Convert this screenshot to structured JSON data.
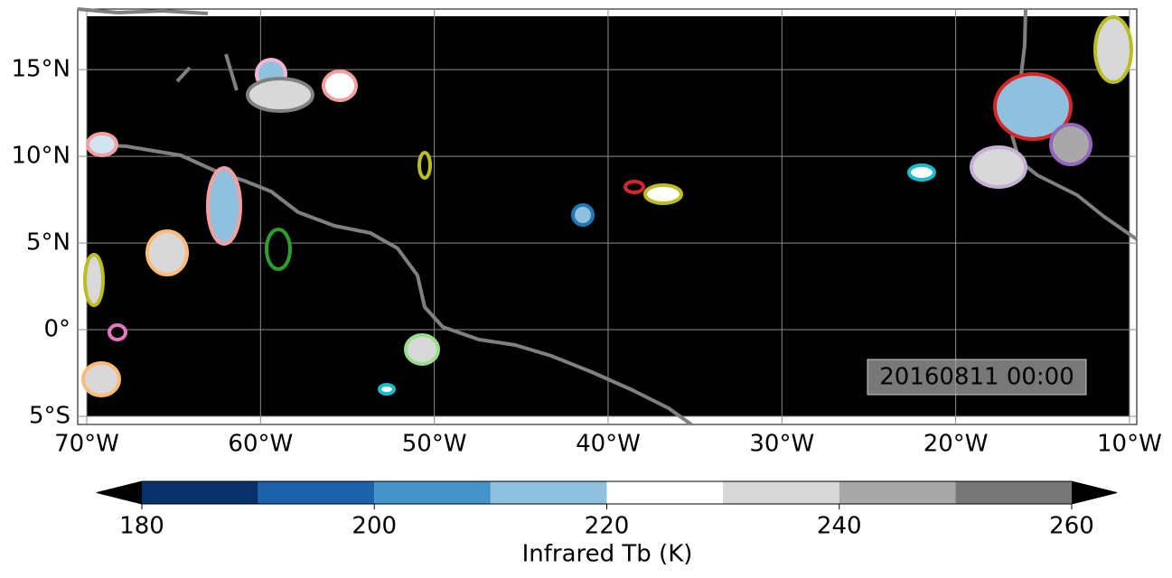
{
  "map": {
    "lonlim": [
      -70.52,
      -9.58
    ],
    "latlim": [
      -5.47,
      18.5
    ],
    "lon_ticks": [
      {
        "value": -70,
        "label": "70°W"
      },
      {
        "value": -60,
        "label": "60°W"
      },
      {
        "value": -50,
        "label": "50°W"
      },
      {
        "value": -40,
        "label": "40°W"
      },
      {
        "value": -30,
        "label": "30°W"
      },
      {
        "value": -20,
        "label": "20°W"
      },
      {
        "value": -10,
        "label": "10°W"
      }
    ],
    "lat_ticks": [
      {
        "value": 15,
        "label": "15°N"
      },
      {
        "value": 10,
        "label": "10°N"
      },
      {
        "value": 5,
        "label": "5°N"
      },
      {
        "value": 0,
        "label": "0°"
      },
      {
        "value": -5,
        "label": "5°S"
      }
    ],
    "timestamp": "20160811 00:00"
  },
  "colorbar": {
    "label": "Infrared Tb (K)",
    "levels": [
      180,
      190,
      200,
      210,
      220,
      230,
      240,
      250,
      260
    ],
    "colors": [
      "#08306b",
      "#1c62aa",
      "#4493c8",
      "#8fc1de",
      "#ffffff",
      "#d8d8d8",
      "#a8a8a8",
      "#767676"
    ],
    "under_color": "#000000",
    "over_color": "#000000",
    "ticks": [
      180,
      200,
      220,
      240,
      260
    ]
  }
}
